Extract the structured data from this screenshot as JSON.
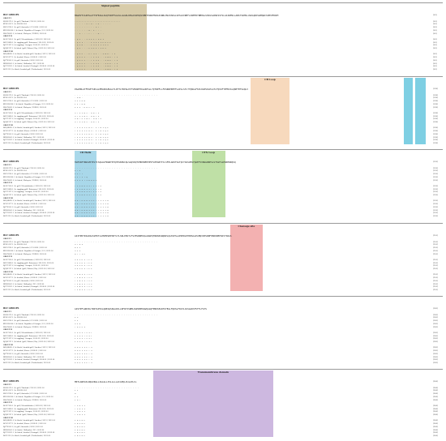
{
  "header_label": "BLV GROUPS",
  "row_labels": [
    {
      "text": "GROUP 1",
      "group": true
    },
    {
      "text": "AY491272.1 | b. gall | Thailand | 706.2S | 2021.04",
      "group": false
    },
    {
      "text": "KF619567.1 | b. MG024.004",
      "group": false
    },
    {
      "text": "AY054740.1 | b. gall | Australia | G53.2004 | 2012.04",
      "group": false
    },
    {
      "text": "KH0334496.1 | b. black | Republic of Georgia | 2.0 | 2012.04",
      "group": false
    },
    {
      "text": "MA376685.1 | b. black | Malaysia | PGR02 | 2013.04",
      "group": false
    },
    {
      "text": "GROUP II",
      "group": true
    },
    {
      "text": "AL297149.1 | b. gall | Mesoahdraites | 2018.02 | 2012.04",
      "group": false
    },
    {
      "text": "AB533489.1 | b. tuggling gall | Botswana | 2014.02 | 2012.04",
      "group": false
    },
    {
      "text": "AJC17427.1 | b. tuggling | Georgia | 2016.02 | 2012.04",
      "group": false
    },
    {
      "text": "AJQ64767.1 | b. black | gall | Rakasi | Bay | 2013.04 | 2012.04",
      "group": false
    },
    {
      "text": "GROUP III",
      "group": true
    },
    {
      "text": "AKQ48669.1 | b. black | headed gull | Sweden | 2013 | 2012.04",
      "group": false
    },
    {
      "text": "AFL35277.1 | b. headed | Korea | 2018.01 | 2012.04",
      "group": false
    },
    {
      "text": "AJC74993.1 | b. gall | Australia | 2018 | 2012.04",
      "group": false
    },
    {
      "text": "BHB49961.1 | b. black | Hollander | W5 | 2012.04",
      "group": false
    },
    {
      "text": "AJ2752025.1 | b. black | headed | Portugal | 2018.04 | 2012.04",
      "group": false
    },
    {
      "text": "AEC1522 | b. black | headed gull | Netherlands | 2012.04",
      "group": false
    }
  ],
  "blocks": [
    {
      "header_seq": "MAGEVTCAIPSLATYSFEAGLIGQYSRPTSLGSLLGGKLKEGASSPKQSSMNTEGNIMVRGISNRLMGCKSKGLSPSGIVNEFLSNMTRYNMHGLSHASSLRNISSTSLGSIWMVLLANSYSWHVLVGKAQDPLWMQWCSSMSFHRIM",
      "end_pos": "[64]",
      "regions": [
        {
          "label": "Signal peptide",
          "color": "#d8ccaa",
          "start": 0.0,
          "end": 0.203
        }
      ],
      "rows": [
        "",
        ".......................................",
        ". . . . .   V T   M  .  T    K           .    .           .  .         .",
        ". . . . .  .           . .  . S                       T                .",
        ". . . . .  .  G               .     I              .          .     .",
        ". .  P . . . T . . . A   .                                               .",
        "",
        ". Q I  . . I  S L I       T     S               K                 I",
        ". Q I V . . . I S L I      V     L             K              I      V",
        ". Q I A . . . I S L I      V     I             K                   V",
        ". Q I  . . . I  S L I      T     I             K                   V",
        "",
        ". Q I P . . I  T  M I . . S       N          K     .               T   V",
        ". Q I P V . . T  I M I . . S       N          K     .               T   V",
        ". Q I P V . . T  I M I . . S       N          K     .               T   V",
        ". Q I P V . . T  I M I . . S       K          K     .               T   V",
        ". Q I P V . . T  I M I . . S       N          K     .               T   V",
        ". Q I P V . . T  I M I . . S       N          K     .               T   V"
      ]
    },
    {
      "header_seq": "PAAPNLGTFEAPYSPLGLEMLRDGEGGLTLRTTLTRPGLPVYSMLNETDGLRPSLLYQTWPFLLFDSRRPKEEFLAPLLSYLTYQNALFKVLKGPSDLPLGTLFQSSFYEMVSSLQNPTHTSAQLV",
      "end_pos": "[128]",
      "regions": [
        {
          "label": "CH Loop",
          "color": "#f7d9bd",
          "start": 0.497,
          "end": 0.606
        },
        {
          "label": "",
          "color": "#7ecfe3",
          "start": 0.928,
          "end": 0.955
        },
        {
          "label": "",
          "color": "#7ecfe3",
          "start": 0.962,
          "end": 0.99
        }
      ],
      "rows": [
        "",
        ". . . . . . . . . . . . . . . . . . . . . . . . . . . . . . . . . . . .",
        "                                        .   A  N              .",
        "   S                                  I         V  A         N",
        "                                       V        E  Y   A     N",
        "   L    L                            S .  D       A   I     T    S",
        "",
        "   S                     T           L   I  N  V .  A        R  T  E",
        "   S                     T           L   I  N  V .  A        R  T  E",
        "   S           N         T           L   I  N  V .  A        R  T  E",
        "   S                     T           L   I  N  V .  A        R  T  E",
        "",
        "   T    V         I     S          V    L  A  S   .  V   T     R V Q E",
        "   T    V         I     S          V    L  A  S   .  V   T     R V Q E",
        "   T    V         I     S          V    L  A  S   .  V   T     R V Q E",
        "   T    V         I     S          V    L  A  S   .  V   T     R V Q E",
        "   T    V         I     S          V    L  A  S   .  V   T     R V Q E",
        "   T    V         I     S          V    L  A  S   .  V   T     R V Q E"
      ]
    },
    {
      "header_seq": "HLHSSEYNGSVKTPLTCSQGLWTRGNYKTQYDSKNSIQLSGQVKQTIMDPWEEPPVFLPEGRYTCLSFPLAKKTSGTQCYGSSVNSYQAETVVNGGRRPSLSTSGFLGPWDEWRQSQ",
      "end_pos": "[192]",
      "regions": [
        {
          "label": "CD Helix",
          "color": "#a9d8ea",
          "start": 0.0,
          "end": 0.062
        },
        {
          "label": "CTN Loop",
          "color": "#bfe0a6",
          "start": 0.331,
          "end": 0.425
        }
      ],
      "rows": [
        "",
        ". . . . . . . . . . . . . . . . . . . . . . . . . . . . . . . . . . . .",
        "   L                            T                                   K",
        "   L                      I     T                 T",
        "   L   V           T      I     T        Q",
        "   L                E   I V  T  I        R           A       K   I",
        "",
        " F I  E       A A    S      S T  V   V         T  L",
        " F I  E       A A    S      S T  V   V         T  L",
        " F I  E       A A    S      S T  V   V         T  L",
        " F I  E       A A    S      S T  V   V         T  L",
        "",
        " A R T  D     A  A  S  S     L  T  T   V       V  I    A",
        " A R T  D     A  A  S  S     L  T  T   V       V  I    A",
        " A R T  D     A  A  S  S     L  T  T   V       V  I    A",
        " A R T  D     A  A  S  S     L  T  T   V       V  I    A",
        " A R T  D     A  A  S  S     L  T  T   V       V  I    A",
        " A R T  D     A  A  S  S     L  T  T   V       V  I    A"
      ]
    },
    {
      "header_seq": "GIITPRTPAAPAASVPKTLGHVMPGEPSHTLTLSRLPRSTLFSVESRNEKQLAWGPQTNWSRSWQNPLQGSVESLAPDPRLPHSMGGLEAMQVDPSRNFPRRKNEPSDVTSRAS",
      "end_pos": "[256]",
      "regions": [
        {
          "label": "Cleavage site",
          "color": "#f3b1b1",
          "start": 0.44,
          "end": 0.53
        }
      ],
      "rows": [
        "",
        ". . . . . . . . . . . . . . . . . . . . . . . . . . . . . . . . . . . .",
        "                        S               T       A         S",
        "                        G              I       V",
        "                        S               I                     L",
        "                        A             T   T         V         L",
        "",
        "   S          K        V     K         S   T       E         I",
        "   S          K        V     K         S   T       E         I",
        "   S          K        V     K         S   T       E         I",
        "   S          K        V     K         S   T       E         I",
        "",
        "   T          V        N     S         S   T       V         V",
        "   T          V        N     S         S   T       V         V",
        "   T          V        N     S         S   T       V         V",
        "   T          V        N     S         S   T       V         V",
        "   T          V        N     S         S   T       V         V",
        "   T          V        N     S         S   T       V         V"
      ]
    },
    {
      "header_seq": "GISTPFLWDVKLTRDTAPVSLQWEAQSKGAIKLLRFWYISNMLKGEWHEKGWQAGQFPNDSEAIHSTEGLFQDSLFDATLAVSGAKSFVFTLFATS",
      "end_pos": "[320]",
      "regions": [],
      "rows": [
        "",
        ". . . . . . . . . . . . . . . . . . . . . . . . . . . . . . . . . . . .",
        "                                    L                         S",
        "              I                     V",
        "              S                     V              A",
        "              T      A              V     E        S",
        "",
        "   V      S        L       I       T      V    S       T",
        "   V      S        L       I       T      V    S       T",
        "   V      S        L       I       T      V    S       T",
        "   V      S        L       I       T      V    S       T",
        "",
        "   K      A        S       V       S      L    T       S",
        "   K      A        S       V       S      L    T       S",
        "   K      A        S       V       S      L    T       S",
        "   K      A        S       V       S      L    T       S",
        "   K      A        S       V       S      L    T       S",
        "   K      A        S       V       S      L    T       S"
      ]
    },
    {
      "header_seq": "MKTLANPLKLRQGIRGLLIGLGLLIVLLLLLACAPQLVLGLPLIL",
      "end_pos": "[384]",
      "regions": [
        {
          "label": "Transmembrane domain",
          "color": "#cdb8e0",
          "start": 0.222,
          "end": 0.56
        }
      ],
      "rows": [
        "",
        ". . . . . . . . . . . . . . . . . . . . . . . . . . . .",
        "                      V       I",
        "                      A",
        "                      V             L",
        "                      V     A     T",
        "",
        "      T   S          A     V     I",
        "      T   S          A     V     I",
        "      T   S          A     V     I",
        "      T   S          A     V     I",
        "",
        "      I   N          V     A     L",
        "      I   N          V     A     L",
        "      I   N          V     A     L",
        "      I   N          V     A     L",
        "      I   N          V     A     L",
        "      I   N          V     A     L"
      ]
    }
  ]
}
